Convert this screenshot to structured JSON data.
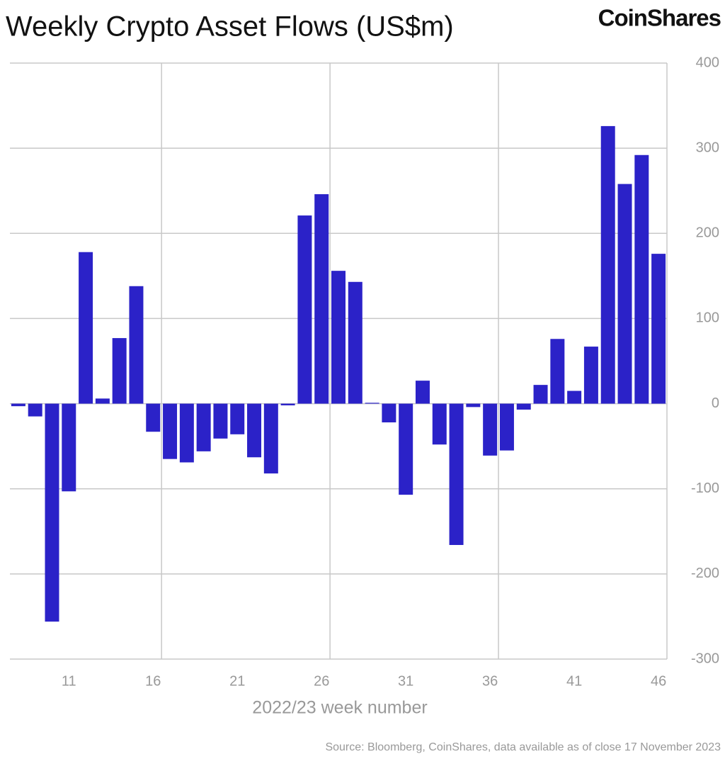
{
  "chart_data": {
    "type": "bar",
    "title": "Weekly Crypto Asset Flows (US$m)",
    "brand": "CoinShares",
    "xlabel": "2022/23 week number",
    "source": "Source: Bloomberg, CoinShares, data available as of close 17 November 2023",
    "categories": [
      null,
      null,
      null,
      "11",
      null,
      null,
      null,
      null,
      "16",
      null,
      null,
      null,
      null,
      "21",
      null,
      null,
      null,
      null,
      "26",
      null,
      null,
      null,
      null,
      "31",
      null,
      null,
      null,
      null,
      "36",
      null,
      null,
      null,
      null,
      "41",
      null,
      null,
      null,
      null,
      "46"
    ],
    "values": [
      -3,
      -15,
      -256,
      -103,
      178,
      6,
      77,
      138,
      -33,
      -65,
      -69,
      -56,
      -41,
      -36,
      -63,
      -82,
      -2,
      221,
      246,
      156,
      143,
      1,
      -22,
      -107,
      27,
      -48,
      -166,
      -4,
      -61,
      -55,
      -7,
      22,
      76,
      15,
      67,
      326,
      258,
      292,
      176
    ],
    "color": "#2b22c8",
    "ylim": [
      -300,
      400
    ],
    "yticks": [
      -300,
      -200,
      -100,
      0,
      100,
      200,
      300,
      400
    ],
    "grid": true
  }
}
